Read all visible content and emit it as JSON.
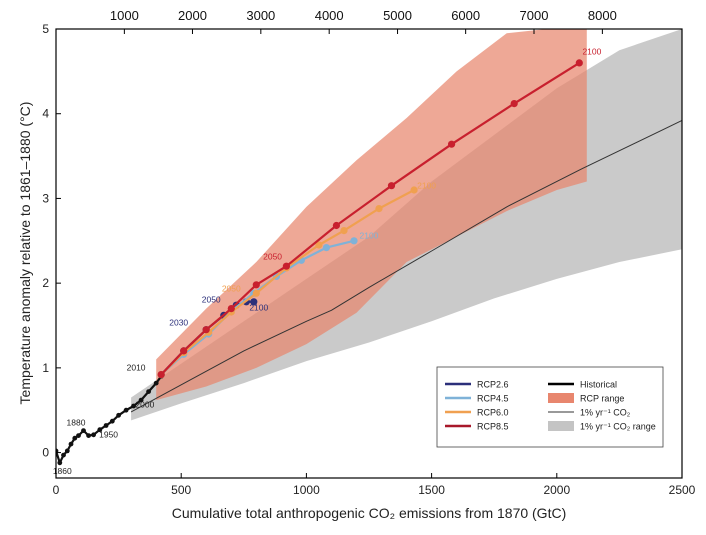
{
  "chart_data": {
    "type": "line",
    "xlabel": "Cumulative total anthropogenic CO₂ emissions from 1870 (GtC)",
    "ylabel": "Temperature anomaly relative to 1861–1880 (°C)",
    "xlim": [
      0,
      2500
    ],
    "ylim": [
      -0.3,
      5
    ],
    "x_ticks": [
      "0",
      "500",
      "1000",
      "1500",
      "2000",
      "2500"
    ],
    "y_ticks": [
      "0",
      "1",
      "2",
      "3",
      "4",
      "5"
    ],
    "top_axis": {
      "ticks": [
        {
          "label": "1000",
          "x": 273
        },
        {
          "label": "2000",
          "x": 545
        },
        {
          "label": "3000",
          "x": 818
        },
        {
          "label": "4000",
          "x": 1091
        },
        {
          "label": "5000",
          "x": 1364
        },
        {
          "label": "6000",
          "x": 1636
        },
        {
          "label": "7000",
          "x": 1909
        },
        {
          "label": "8000",
          "x": 2182
        }
      ]
    },
    "legend": {
      "position": "bottom-right",
      "entries": [
        {
          "label": "RCP2.6",
          "color": "#2b2f7a",
          "kind": "line"
        },
        {
          "label": "RCP4.5",
          "color": "#7fb2d8",
          "kind": "line"
        },
        {
          "label": "RCP6.0",
          "color": "#f0a050",
          "kind": "line"
        },
        {
          "label": "RCP8.5",
          "color": "#a8182a",
          "kind": "line"
        },
        {
          "label": "Historical",
          "color": "#000000",
          "kind": "line"
        },
        {
          "label": "RCP range",
          "color": "#e8866e",
          "kind": "patch"
        },
        {
          "label": "1% yr⁻¹ CO₂",
          "color": "#333333",
          "kind": "thin"
        },
        {
          "label": "1% yr⁻¹ CO₂ range",
          "color": "#c4c4c4",
          "kind": "patch"
        }
      ]
    },
    "series": [
      {
        "name": "Historical",
        "color": "#111111",
        "points": [
          [
            0,
            0.02
          ],
          [
            15,
            -0.12
          ],
          [
            30,
            -0.03
          ],
          [
            45,
            0.02
          ],
          [
            60,
            0.1
          ],
          [
            75,
            0.17
          ],
          [
            90,
            0.2
          ],
          [
            110,
            0.26
          ],
          [
            130,
            0.2
          ],
          [
            150,
            0.21
          ],
          [
            175,
            0.27
          ],
          [
            200,
            0.32
          ],
          [
            225,
            0.37
          ],
          [
            250,
            0.44
          ],
          [
            280,
            0.5
          ],
          [
            310,
            0.55
          ],
          [
            340,
            0.62
          ],
          [
            370,
            0.72
          ],
          [
            400,
            0.82
          ],
          [
            420,
            0.9
          ]
        ],
        "labels": [
          {
            "text": "1860",
            "x": 25,
            "y": -0.25
          },
          {
            "text": "1880",
            "x": 80,
            "y": 0.32
          },
          {
            "text": "1950",
            "x": 210,
            "y": 0.18
          },
          {
            "text": "2000",
            "x": 355,
            "y": 0.53
          },
          {
            "text": "2010",
            "x": 320,
            "y": 0.97
          }
        ]
      },
      {
        "name": "RCP2.6",
        "color": "#2b2f7a",
        "points": [
          [
            420,
            0.92
          ],
          [
            510,
            1.2
          ],
          [
            600,
            1.45
          ],
          [
            670,
            1.62
          ],
          [
            720,
            1.74
          ],
          [
            760,
            1.78
          ],
          [
            790,
            1.78
          ]
        ],
        "labels": [
          {
            "text": "2030",
            "x": 490,
            "y": 1.5
          },
          {
            "text": "2050",
            "x": 620,
            "y": 1.77
          },
          {
            "text": "2100",
            "x": 810,
            "y": 1.68
          }
        ]
      },
      {
        "name": "RCP4.5",
        "color": "#7fb2d8",
        "points": [
          [
            420,
            0.92
          ],
          [
            510,
            1.16
          ],
          [
            610,
            1.4
          ],
          [
            700,
            1.67
          ],
          [
            790,
            1.88
          ],
          [
            880,
            2.08
          ],
          [
            980,
            2.27
          ],
          [
            1080,
            2.42
          ],
          [
            1190,
            2.5
          ]
        ],
        "labels": [
          {
            "text": "2100",
            "x": 1250,
            "y": 2.53
          }
        ]
      },
      {
        "name": "RCP6.0",
        "color": "#f0a050",
        "points": [
          [
            420,
            0.92
          ],
          [
            510,
            1.18
          ],
          [
            610,
            1.42
          ],
          [
            700,
            1.66
          ],
          [
            800,
            1.88
          ],
          [
            920,
            2.18
          ],
          [
            1050,
            2.45
          ],
          [
            1150,
            2.62
          ],
          [
            1290,
            2.88
          ],
          [
            1430,
            3.1
          ]
        ],
        "labels": [
          {
            "text": "2050",
            "x": 700,
            "y": 1.9
          },
          {
            "text": "2100",
            "x": 1480,
            "y": 3.12
          }
        ]
      },
      {
        "name": "RCP8.5",
        "color": "#c8202e",
        "points": [
          [
            420,
            0.92
          ],
          [
            510,
            1.2
          ],
          [
            600,
            1.45
          ],
          [
            700,
            1.7
          ],
          [
            800,
            1.98
          ],
          [
            920,
            2.2
          ],
          [
            1120,
            2.68
          ],
          [
            1340,
            3.15
          ],
          [
            1580,
            3.64
          ],
          [
            1830,
            4.12
          ],
          [
            2090,
            4.6
          ]
        ],
        "labels": [
          {
            "text": "2050",
            "x": 865,
            "y": 2.28
          },
          {
            "text": "2100",
            "x": 2140,
            "y": 4.7
          }
        ]
      },
      {
        "name": "1% yr⁻¹ CO₂",
        "color": "#333333",
        "points": [
          [
            300,
            0.48
          ],
          [
            500,
            0.8
          ],
          [
            750,
            1.2
          ],
          [
            1000,
            1.55
          ],
          [
            1100,
            1.68
          ],
          [
            1250,
            1.95
          ],
          [
            1500,
            2.38
          ],
          [
            1800,
            2.9
          ],
          [
            2100,
            3.35
          ],
          [
            2500,
            3.92
          ]
        ]
      }
    ],
    "bands": [
      {
        "name": "1% yr⁻¹ CO₂ range",
        "color": "#c4c4c4",
        "upper": [
          [
            300,
            0.65
          ],
          [
            500,
            1.05
          ],
          [
            750,
            1.55
          ],
          [
            1000,
            2.05
          ],
          [
            1250,
            2.55
          ],
          [
            1500,
            3.2
          ],
          [
            1750,
            3.75
          ],
          [
            2000,
            4.3
          ],
          [
            2250,
            4.75
          ],
          [
            2500,
            5.0
          ]
        ],
        "lower": [
          [
            2500,
            2.4
          ],
          [
            2250,
            2.25
          ],
          [
            2000,
            2.05
          ],
          [
            1750,
            1.82
          ],
          [
            1500,
            1.55
          ],
          [
            1250,
            1.3
          ],
          [
            1000,
            1.08
          ],
          [
            750,
            0.82
          ],
          [
            500,
            0.58
          ],
          [
            300,
            0.38
          ]
        ]
      },
      {
        "name": "RCP range",
        "color": "#e8866e",
        "upper": [
          [
            400,
            1.1
          ],
          [
            600,
            1.7
          ],
          [
            800,
            2.25
          ],
          [
            1000,
            2.9
          ],
          [
            1200,
            3.45
          ],
          [
            1400,
            3.95
          ],
          [
            1600,
            4.5
          ],
          [
            1800,
            4.95
          ],
          [
            1960,
            5.0
          ],
          [
            2120,
            5.0
          ]
        ],
        "lower": [
          [
            2120,
            3.2
          ],
          [
            2000,
            3.1
          ],
          [
            1800,
            2.85
          ],
          [
            1600,
            2.55
          ],
          [
            1400,
            2.25
          ],
          [
            1200,
            1.65
          ],
          [
            1000,
            1.28
          ],
          [
            800,
            1.0
          ],
          [
            600,
            0.78
          ],
          [
            400,
            0.62
          ]
        ]
      }
    ],
    "grid": false
  }
}
